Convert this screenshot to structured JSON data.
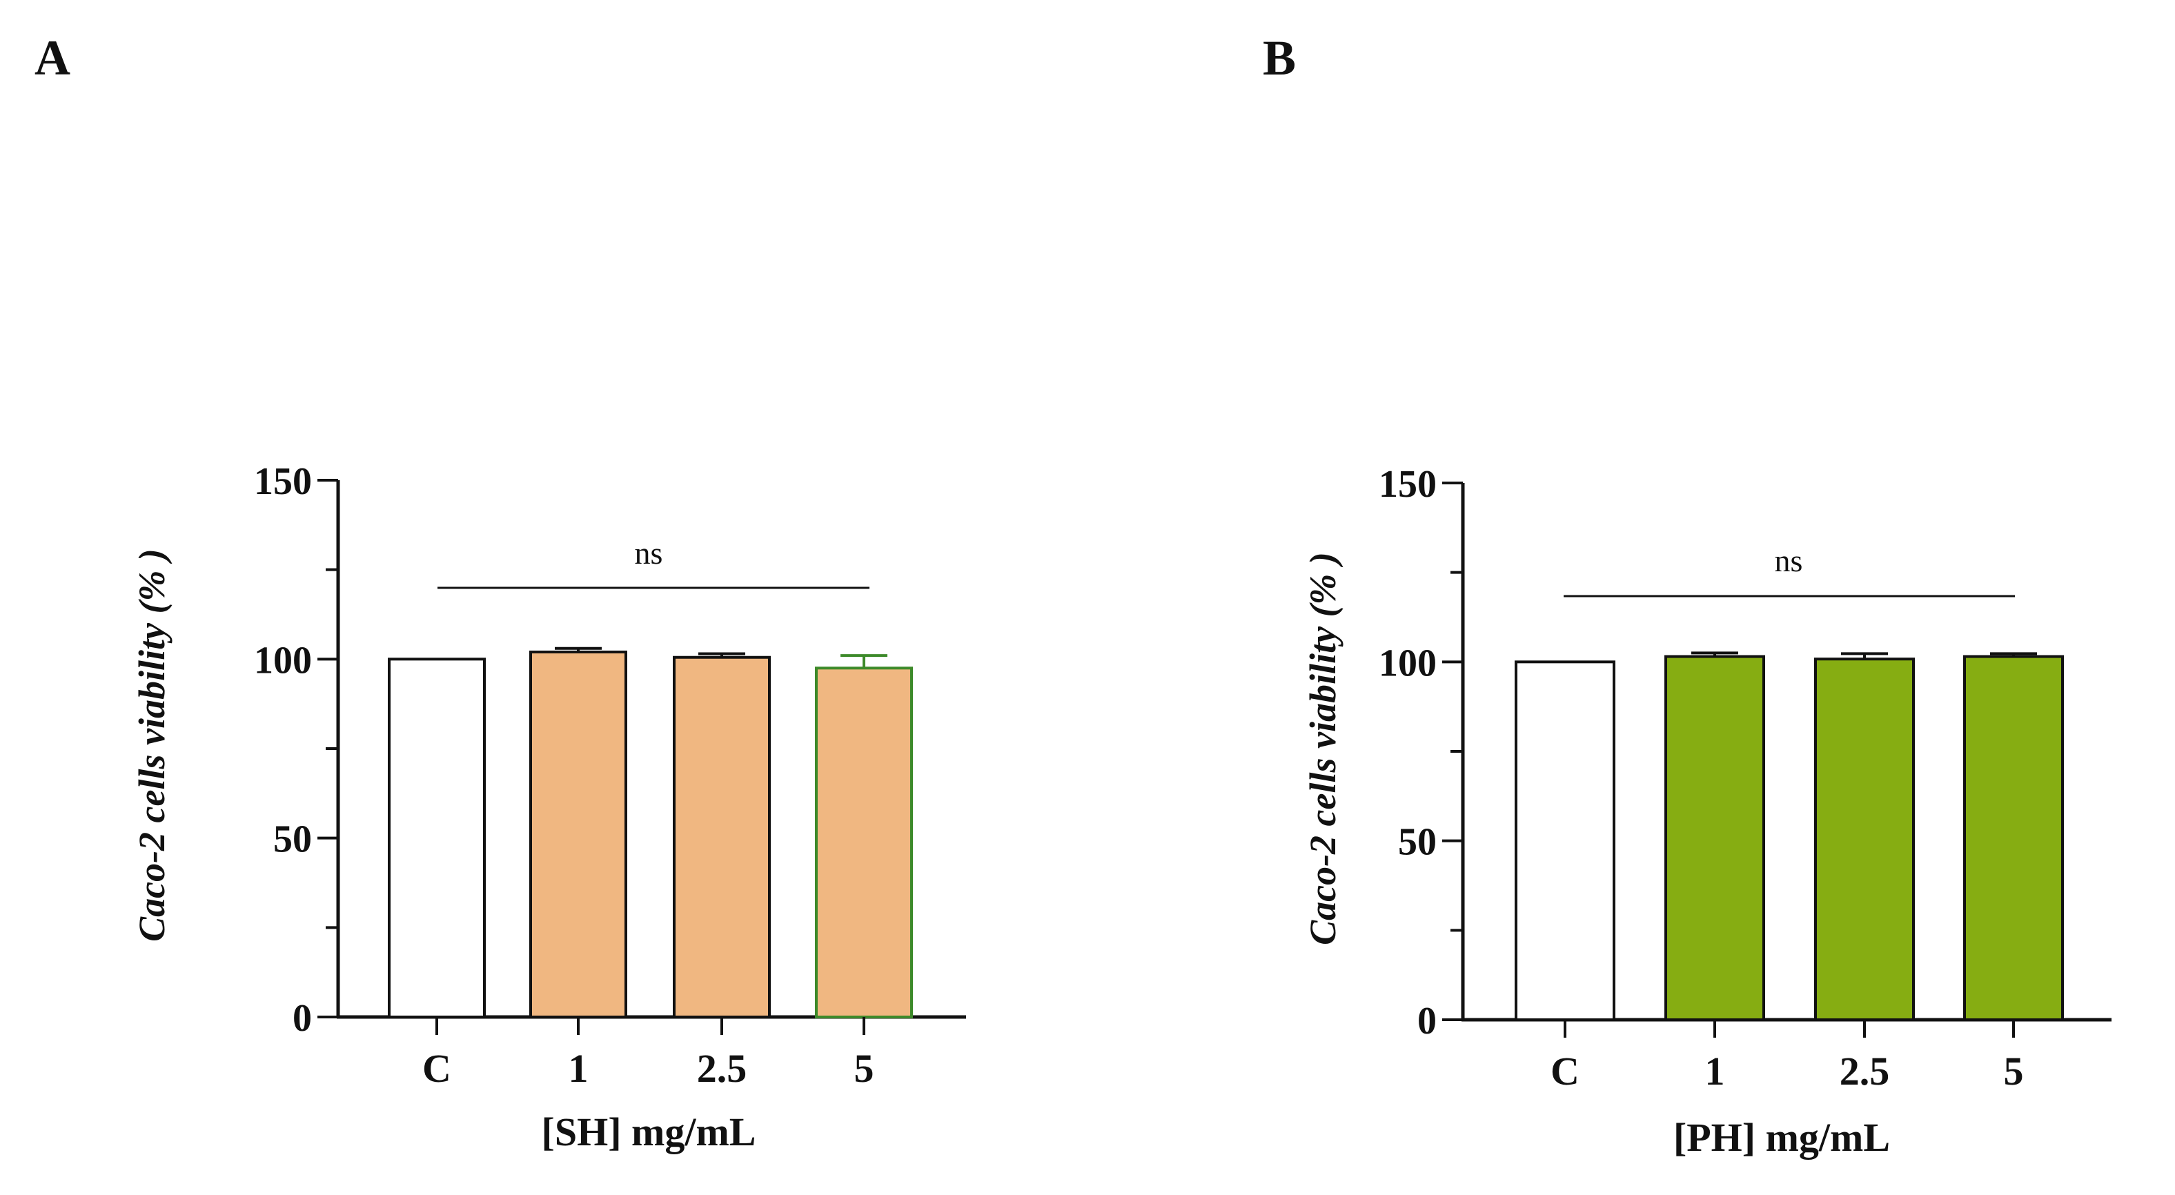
{
  "figure": {
    "panels": [
      "A",
      "B"
    ]
  },
  "colors": {
    "control": "#ffffff",
    "sh": "#f0b781",
    "ph": "#86ad12",
    "axis": "#111111"
  },
  "chart_data": [
    {
      "type": "bar",
      "panel": "A",
      "categories": [
        "C",
        "1",
        "2.5",
        "5"
      ],
      "values": [
        100,
        102,
        100.5,
        97.5
      ],
      "errors": [
        0,
        1,
        1,
        3.5
      ],
      "bar_colors": [
        "#ffffff",
        "#f0b781",
        "#f0b781",
        "#f0b781"
      ],
      "xlabel": "[SH] mg/mL",
      "ylabel": "Caco-2 cells viability (% )",
      "ylim": [
        0,
        150
      ],
      "yticks": [
        "0",
        "50",
        "100",
        "150"
      ],
      "significance": "ns",
      "grid": false
    },
    {
      "type": "bar",
      "panel": "B",
      "categories": [
        "C",
        "1",
        "2.5",
        "5"
      ],
      "values": [
        100,
        101.5,
        100.8,
        101.5
      ],
      "errors": [
        0,
        1,
        1.5,
        0.8
      ],
      "bar_colors": [
        "#ffffff",
        "#86ad12",
        "#86ad12",
        "#86ad12"
      ],
      "xlabel": "[PH] mg/mL",
      "ylabel": "Caco-2 cells viability (% )",
      "ylim": [
        0,
        150
      ],
      "yticks": [
        "0",
        "50",
        "100",
        "150"
      ],
      "significance": "ns",
      "grid": false
    }
  ]
}
